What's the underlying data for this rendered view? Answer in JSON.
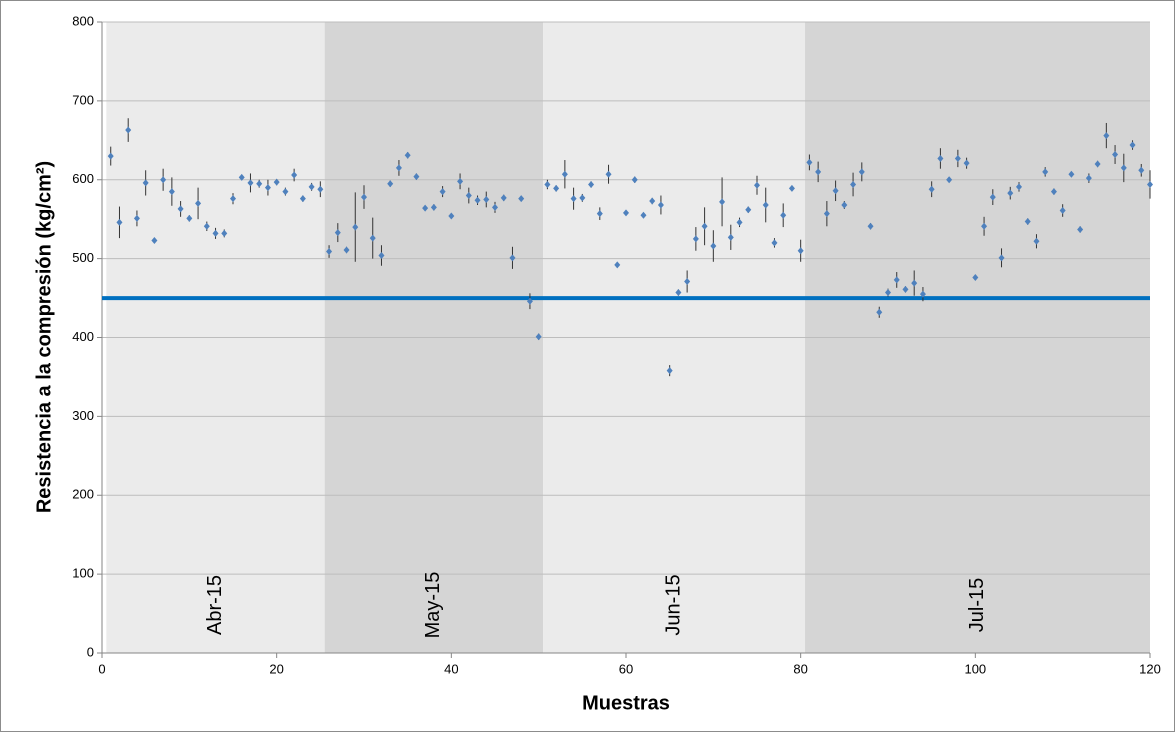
{
  "chart_data": {
    "type": "errorbar-scatter",
    "xlabel": "Muestras",
    "ylabel": "Resistencia a la compresión (kg/cm²)",
    "xlim": [
      0,
      120
    ],
    "xticks": [
      0,
      20,
      40,
      60,
      80,
      100,
      120
    ],
    "ylim": [
      0,
      800
    ],
    "yticks": [
      0,
      100,
      200,
      300,
      400,
      500,
      600,
      700,
      800
    ],
    "grid": true,
    "bands": [
      {
        "label": "Abr-15",
        "start": 0.5,
        "end": 25.5,
        "color": "#ebebeb"
      },
      {
        "label": "May-15",
        "start": 25.5,
        "end": 50.5,
        "color": "#d5d5d5"
      },
      {
        "label": "Jun-15",
        "start": 50.5,
        "end": 80.5,
        "color": "#ebebeb"
      },
      {
        "label": "Jul-15",
        "start": 80.5,
        "end": 120,
        "color": "#d5d5d5"
      }
    ],
    "reference_line": {
      "value": 450,
      "color": "#0070c0"
    },
    "series": [
      {
        "color": "#4f81bd",
        "error_color": "#333333",
        "x": [
          1,
          2,
          3,
          4,
          5,
          6,
          7,
          8,
          9,
          10,
          11,
          12,
          13,
          14,
          15,
          16,
          17,
          18,
          19,
          20,
          21,
          22,
          23,
          24,
          25,
          26,
          27,
          28,
          29,
          30,
          31,
          32,
          33,
          34,
          35,
          36,
          37,
          38,
          39,
          40,
          41,
          42,
          43,
          44,
          45,
          46,
          47,
          48,
          49,
          50,
          51,
          52,
          53,
          54,
          55,
          56,
          57,
          58,
          59,
          60,
          61,
          62,
          63,
          64,
          65,
          66,
          67,
          68,
          69,
          70,
          71,
          72,
          73,
          74,
          75,
          76,
          77,
          78,
          79,
          80,
          81,
          82,
          83,
          84,
          85,
          86,
          87,
          88,
          89,
          90,
          91,
          92,
          93,
          94,
          95,
          96,
          97,
          98,
          99,
          100,
          101,
          102,
          103,
          104,
          105,
          106,
          107,
          108,
          109,
          110,
          111,
          112,
          113,
          114,
          115,
          116,
          117,
          118,
          119,
          120
        ],
        "values": [
          630,
          546,
          663,
          551,
          596,
          523,
          600,
          585,
          563,
          551,
          570,
          541,
          532,
          532,
          576,
          603,
          596,
          595,
          590,
          597,
          585,
          606,
          576,
          591,
          588,
          509,
          533,
          511,
          540,
          578,
          526,
          504,
          595,
          615,
          631,
          604,
          564,
          565,
          585,
          554,
          598,
          580,
          574,
          575,
          565,
          577,
          501,
          576,
          446,
          401,
          594,
          589,
          607,
          576,
          577,
          594,
          557,
          607,
          492,
          558,
          600,
          555,
          573,
          568,
          358,
          457,
          471,
          525,
          541,
          516,
          572,
          527,
          546,
          562,
          593,
          568,
          520,
          555,
          589,
          510,
          622,
          610,
          557,
          586,
          568,
          594,
          610,
          541,
          432,
          457,
          473,
          461,
          469,
          455,
          588,
          627,
          600,
          627,
          621,
          476,
          541,
          578,
          501,
          583,
          591,
          547,
          522,
          610,
          585,
          561,
          607,
          537,
          602,
          620,
          656,
          632,
          615,
          644,
          612,
          594
        ],
        "errors": [
          12,
          20,
          15,
          10,
          16,
          3,
          14,
          18,
          10,
          4,
          20,
          6,
          7,
          5,
          7,
          3,
          12,
          5,
          10,
          4,
          5,
          8,
          4,
          5,
          10,
          8,
          12,
          4,
          44,
          15,
          26,
          13,
          4,
          10,
          4,
          4,
          3,
          4,
          7,
          3,
          10,
          10,
          6,
          10,
          7,
          4,
          14,
          3,
          10,
          4,
          6,
          4,
          18,
          14,
          5,
          4,
          8,
          12,
          3,
          3,
          4,
          3,
          4,
          12,
          7,
          4,
          14,
          15,
          24,
          20,
          31,
          16,
          6,
          4,
          12,
          22,
          6,
          15,
          3,
          14,
          10,
          13,
          16,
          13,
          5,
          15,
          12,
          4,
          7,
          5,
          10,
          4,
          16,
          9,
          10,
          13,
          3,
          11,
          7,
          3,
          12,
          10,
          12,
          8,
          6,
          4,
          9,
          6,
          4,
          8,
          3,
          4,
          6,
          4,
          16,
          12,
          18,
          6,
          8,
          18
        ]
      }
    ]
  }
}
